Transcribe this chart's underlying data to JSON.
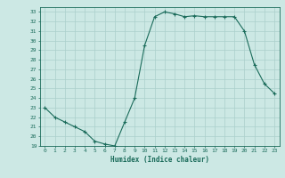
{
  "xlabel": "Humidex (Indice chaleur)",
  "x": [
    0,
    1,
    2,
    3,
    4,
    5,
    6,
    7,
    8,
    9,
    10,
    11,
    12,
    13,
    14,
    15,
    16,
    17,
    18,
    19,
    20,
    21,
    22,
    23
  ],
  "y": [
    23,
    22,
    21.5,
    21,
    20.5,
    19.5,
    19.2,
    19.0,
    21.5,
    24.0,
    29.5,
    32.5,
    33.0,
    32.8,
    32.5,
    32.6,
    32.5,
    32.5,
    32.5,
    32.5,
    31.0,
    27.5,
    25.5,
    24.5
  ],
  "ylim": [
    19,
    33.5
  ],
  "yticks": [
    19,
    20,
    21,
    22,
    23,
    24,
    25,
    26,
    27,
    28,
    29,
    30,
    31,
    32,
    33
  ],
  "xticks": [
    0,
    1,
    2,
    3,
    4,
    5,
    6,
    7,
    8,
    9,
    10,
    11,
    12,
    13,
    14,
    15,
    16,
    17,
    18,
    19,
    20,
    21,
    22,
    23
  ],
  "line_color": "#1a6b5a",
  "bg_color": "#cce8e4",
  "grid_color": "#aacfcb",
  "tick_label_color": "#1a6b5a",
  "xlabel_color": "#1a6b5a",
  "marker": "+"
}
